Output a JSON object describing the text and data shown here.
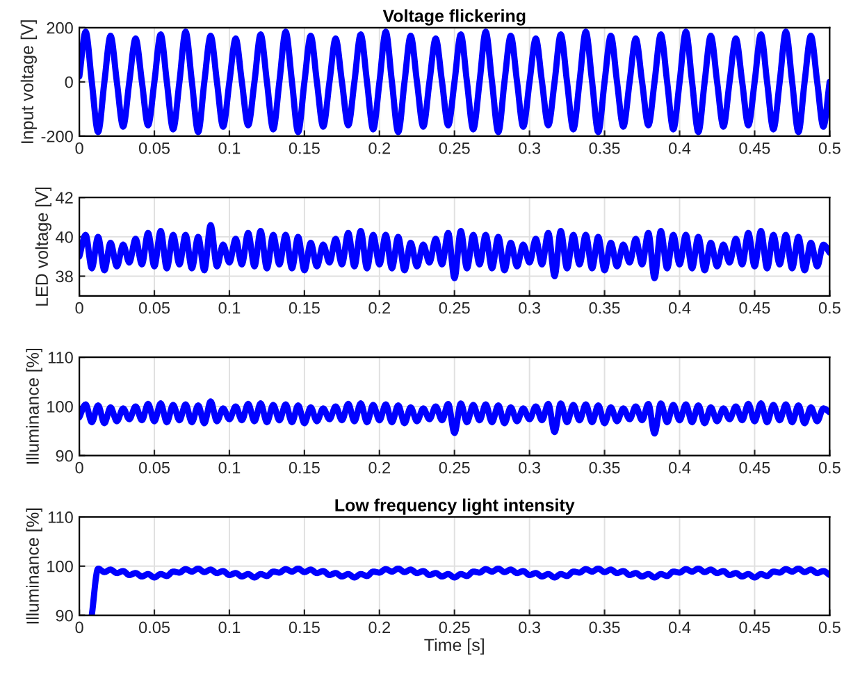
{
  "chart_data": [
    {
      "type": "line",
      "title": "Voltage flickering",
      "ylabel": "Input voltage [V]",
      "xlim": [
        0,
        0.5
      ],
      "xticks": [
        0,
        0.05,
        0.1,
        0.15,
        0.2,
        0.25,
        0.3,
        0.35,
        0.4,
        0.45,
        0.5
      ],
      "ylim": [
        -200,
        200
      ],
      "yticks": [
        -200,
        0,
        200
      ],
      "grid": true,
      "x": [
        0,
        0.0042,
        0.0083,
        0.0125,
        0.0167,
        0.0208,
        0.025,
        0.0292,
        0.0333,
        0.0375,
        0.0417,
        0.0458,
        0.05,
        0.0542,
        0.0583,
        0.0625,
        0.0667,
        0.0708,
        0.075,
        0.0792,
        0.0833,
        0.0875,
        0.0917,
        0.0958,
        0.1,
        0.1042,
        0.1083,
        0.1125,
        0.1167,
        0.1208,
        0.125,
        0.1292,
        0.1333,
        0.1375,
        0.1417,
        0.1458,
        0.15,
        0.1542,
        0.1583,
        0.1625,
        0.1667,
        0.1708,
        0.175,
        0.1792,
        0.1833,
        0.1875,
        0.1917,
        0.1958,
        0.2,
        0.2042,
        0.2083,
        0.2125,
        0.2167,
        0.2208,
        0.225,
        0.2292,
        0.2333,
        0.2375,
        0.2417,
        0.2458,
        0.25,
        0.2542,
        0.2583,
        0.2625,
        0.2667,
        0.2708,
        0.275,
        0.2792,
        0.2833,
        0.2875,
        0.2917,
        0.2958,
        0.3,
        0.3042,
        0.3083,
        0.3125,
        0.3167,
        0.3208,
        0.325,
        0.3292,
        0.3333,
        0.3375,
        0.3417,
        0.3458,
        0.35,
        0.3542,
        0.3583,
        0.3625,
        0.3667,
        0.3708,
        0.375,
        0.3792,
        0.3833,
        0.3875,
        0.3917,
        0.3958,
        0.4,
        0.4042,
        0.4083,
        0.4125,
        0.4167,
        0.4208,
        0.425,
        0.4292,
        0.4333,
        0.4375,
        0.4417,
        0.4458,
        0.45,
        0.4542,
        0.4583,
        0.4625,
        0.4667,
        0.4708,
        0.475,
        0.4792,
        0.4833,
        0.4875,
        0.4917,
        0.4958,
        0.5
      ],
      "series": [
        {
          "color": "#0000ff",
          "values": [
            20,
            185,
            0,
            -185,
            0,
            170,
            0,
            -165,
            0,
            160,
            0,
            -160,
            0,
            175,
            0,
            -175,
            0,
            185,
            0,
            -185,
            0,
            170,
            0,
            -165,
            0,
            160,
            0,
            -160,
            0,
            175,
            0,
            -175,
            0,
            185,
            0,
            -185,
            0,
            170,
            0,
            -165,
            0,
            160,
            0,
            -160,
            0,
            175,
            0,
            -175,
            0,
            185,
            0,
            -185,
            0,
            170,
            0,
            -165,
            0,
            160,
            0,
            -160,
            0,
            175,
            0,
            -175,
            0,
            185,
            0,
            -185,
            0,
            170,
            0,
            -165,
            0,
            160,
            0,
            -160,
            0,
            175,
            0,
            -175,
            0,
            185,
            0,
            -185,
            0,
            170,
            0,
            -165,
            0,
            160,
            0,
            -160,
            0,
            175,
            0,
            -175,
            0,
            185,
            0,
            -185,
            0,
            170,
            0,
            -165,
            0,
            160,
            0,
            -160,
            0,
            175,
            0,
            -175,
            0,
            185,
            0,
            -185,
            0,
            170,
            0,
            -165,
            0
          ]
        }
      ]
    },
    {
      "type": "line",
      "ylabel": "LED voltage [V]",
      "xlim": [
        0,
        0.5
      ],
      "xticks": [
        0,
        0.05,
        0.1,
        0.15,
        0.2,
        0.25,
        0.3,
        0.35,
        0.4,
        0.45,
        0.5
      ],
      "ylim": [
        37,
        42
      ],
      "yticks": [
        38,
        40,
        42
      ],
      "grid": true,
      "x": [
        0,
        0.0042,
        0.0083,
        0.0125,
        0.0167,
        0.0208,
        0.025,
        0.0292,
        0.0333,
        0.0375,
        0.0417,
        0.0458,
        0.05,
        0.0542,
        0.0583,
        0.0625,
        0.0667,
        0.0708,
        0.075,
        0.0792,
        0.0833,
        0.0875,
        0.0917,
        0.0958,
        0.1,
        0.1042,
        0.1083,
        0.1125,
        0.1167,
        0.1208,
        0.125,
        0.1292,
        0.1333,
        0.1375,
        0.1417,
        0.1458,
        0.15,
        0.1542,
        0.1583,
        0.1625,
        0.1667,
        0.1708,
        0.175,
        0.1792,
        0.1833,
        0.1875,
        0.1917,
        0.1958,
        0.2,
        0.2042,
        0.2083,
        0.2125,
        0.2167,
        0.2208,
        0.225,
        0.2292,
        0.2333,
        0.2375,
        0.2417,
        0.2458,
        0.25,
        0.2542,
        0.2583,
        0.2625,
        0.2667,
        0.2708,
        0.275,
        0.2792,
        0.2833,
        0.2875,
        0.2917,
        0.2958,
        0.3,
        0.3042,
        0.3083,
        0.3125,
        0.3167,
        0.3208,
        0.325,
        0.3292,
        0.3333,
        0.3375,
        0.3417,
        0.3458,
        0.35,
        0.3542,
        0.3583,
        0.3625,
        0.3667,
        0.3708,
        0.375,
        0.3792,
        0.3833,
        0.3875,
        0.3917,
        0.3958,
        0.4,
        0.4042,
        0.4083,
        0.4125,
        0.4167,
        0.4208,
        0.425,
        0.4292,
        0.4333,
        0.4375,
        0.4417,
        0.4458,
        0.45,
        0.4542,
        0.4583,
        0.4625,
        0.4667,
        0.4708,
        0.475,
        0.4792,
        0.4833,
        0.4875,
        0.4917,
        0.4958,
        0.5
      ],
      "series": [
        {
          "color": "#0000ff",
          "values": [
            39.0,
            40.1,
            38.4,
            40.0,
            38.3,
            39.7,
            38.5,
            39.6,
            38.7,
            39.9,
            38.6,
            40.2,
            38.5,
            40.3,
            38.4,
            40.1,
            38.6,
            40.1,
            38.4,
            40.0,
            38.3,
            40.6,
            38.5,
            39.6,
            38.7,
            39.9,
            38.6,
            40.2,
            38.5,
            40.3,
            38.4,
            40.1,
            38.6,
            40.1,
            38.4,
            40.0,
            38.3,
            39.7,
            38.5,
            39.6,
            38.7,
            39.9,
            38.6,
            40.2,
            38.5,
            40.3,
            38.4,
            40.1,
            38.6,
            40.1,
            38.4,
            40.0,
            38.3,
            39.7,
            38.5,
            39.6,
            38.7,
            39.9,
            38.6,
            40.2,
            37.9,
            40.3,
            38.4,
            40.1,
            38.6,
            40.1,
            38.4,
            40.0,
            38.3,
            39.7,
            38.5,
            39.6,
            38.7,
            39.9,
            38.6,
            40.2,
            38.0,
            40.3,
            38.4,
            40.1,
            38.6,
            40.1,
            38.4,
            40.0,
            38.3,
            39.7,
            38.5,
            39.6,
            38.7,
            39.9,
            38.6,
            40.2,
            37.9,
            40.3,
            38.4,
            40.1,
            38.6,
            40.1,
            38.4,
            40.0,
            38.3,
            39.7,
            38.5,
            39.6,
            38.7,
            39.9,
            38.6,
            40.2,
            38.5,
            40.3,
            38.4,
            40.1,
            38.6,
            40.1,
            38.4,
            40.0,
            38.3,
            39.7,
            38.5,
            39.6,
            39.2
          ]
        }
      ]
    },
    {
      "type": "line",
      "ylabel": "Illuminance [%]",
      "xlim": [
        0,
        0.5
      ],
      "xticks": [
        0,
        0.05,
        0.1,
        0.15,
        0.2,
        0.25,
        0.3,
        0.35,
        0.4,
        0.45,
        0.5
      ],
      "ylim": [
        90,
        110
      ],
      "yticks": [
        90,
        100,
        110
      ],
      "grid": true,
      "x": [
        0,
        0.0042,
        0.0083,
        0.0125,
        0.0167,
        0.0208,
        0.025,
        0.0292,
        0.0333,
        0.0375,
        0.0417,
        0.0458,
        0.05,
        0.0542,
        0.0583,
        0.0625,
        0.0667,
        0.0708,
        0.075,
        0.0792,
        0.0833,
        0.0875,
        0.0917,
        0.0958,
        0.1,
        0.1042,
        0.1083,
        0.1125,
        0.1167,
        0.1208,
        0.125,
        0.1292,
        0.1333,
        0.1375,
        0.1417,
        0.1458,
        0.15,
        0.1542,
        0.1583,
        0.1625,
        0.1667,
        0.1708,
        0.175,
        0.1792,
        0.1833,
        0.1875,
        0.1917,
        0.1958,
        0.2,
        0.2042,
        0.2083,
        0.2125,
        0.2167,
        0.2208,
        0.225,
        0.2292,
        0.2333,
        0.2375,
        0.2417,
        0.2458,
        0.25,
        0.2542,
        0.2583,
        0.2625,
        0.2667,
        0.2708,
        0.275,
        0.2792,
        0.2833,
        0.2875,
        0.2917,
        0.2958,
        0.3,
        0.3042,
        0.3083,
        0.3125,
        0.3167,
        0.3208,
        0.325,
        0.3292,
        0.3333,
        0.3375,
        0.3417,
        0.3458,
        0.35,
        0.3542,
        0.3583,
        0.3625,
        0.3667,
        0.3708,
        0.375,
        0.3792,
        0.3833,
        0.3875,
        0.3917,
        0.3958,
        0.4,
        0.4042,
        0.4083,
        0.4125,
        0.4167,
        0.4208,
        0.425,
        0.4292,
        0.4333,
        0.4375,
        0.4417,
        0.4458,
        0.45,
        0.4542,
        0.4583,
        0.4625,
        0.4667,
        0.4708,
        0.475,
        0.4792,
        0.4833,
        0.4875,
        0.4917,
        0.4958,
        0.5
      ],
      "series": [
        {
          "color": "#0000ff",
          "values": [
            97.8,
            100.4,
            96.8,
            100.2,
            96.6,
            99.8,
            97.0,
            99.6,
            97.4,
            100.0,
            97.2,
            100.5,
            97.0,
            100.6,
            96.8,
            100.3,
            97.2,
            100.4,
            96.8,
            100.2,
            96.6,
            101.0,
            97.0,
            99.6,
            97.4,
            100.0,
            97.2,
            100.5,
            97.0,
            100.6,
            96.8,
            100.3,
            97.2,
            100.4,
            96.8,
            100.2,
            96.6,
            99.8,
            97.0,
            99.6,
            97.4,
            100.0,
            97.2,
            100.5,
            97.0,
            100.6,
            96.8,
            100.3,
            97.2,
            100.4,
            96.8,
            100.2,
            96.6,
            99.8,
            97.0,
            99.6,
            97.4,
            100.0,
            97.2,
            100.5,
            94.6,
            100.6,
            96.8,
            100.3,
            97.2,
            100.4,
            96.8,
            100.2,
            96.6,
            99.8,
            97.0,
            99.6,
            97.4,
            100.0,
            97.2,
            100.5,
            94.8,
            100.6,
            96.8,
            100.3,
            97.2,
            100.4,
            96.8,
            100.2,
            96.6,
            99.8,
            97.0,
            99.6,
            97.4,
            100.0,
            97.2,
            100.5,
            94.5,
            100.6,
            96.8,
            100.3,
            97.2,
            100.4,
            96.8,
            100.2,
            96.6,
            99.8,
            97.0,
            99.6,
            97.4,
            100.0,
            97.2,
            100.5,
            97.0,
            100.6,
            96.8,
            100.3,
            97.2,
            100.4,
            96.8,
            100.2,
            96.6,
            99.8,
            97.0,
            99.6,
            98.8
          ]
        }
      ]
    },
    {
      "type": "line",
      "title": "Low frequency light intensity",
      "xlabel": "Time [s]",
      "ylabel": "Illuminance [%]",
      "xlim": [
        0,
        0.5
      ],
      "xticks": [
        0,
        0.05,
        0.1,
        0.15,
        0.2,
        0.25,
        0.3,
        0.35,
        0.4,
        0.45,
        0.5
      ],
      "ylim": [
        90,
        110
      ],
      "yticks": [
        90,
        100,
        110
      ],
      "grid": true,
      "x": [
        0.0083,
        0.0125,
        0.0167,
        0.0208,
        0.025,
        0.0292,
        0.0333,
        0.0375,
        0.0417,
        0.0458,
        0.05,
        0.0542,
        0.0583,
        0.0625,
        0.0667,
        0.0708,
        0.075,
        0.0792,
        0.0833,
        0.0875,
        0.0917,
        0.0958,
        0.1,
        0.1042,
        0.1083,
        0.1125,
        0.1167,
        0.1208,
        0.125,
        0.1292,
        0.1333,
        0.1375,
        0.1417,
        0.1458,
        0.15,
        0.1542,
        0.1583,
        0.1625,
        0.1667,
        0.1708,
        0.175,
        0.1792,
        0.1833,
        0.1875,
        0.1917,
        0.1958,
        0.2,
        0.2042,
        0.2083,
        0.2125,
        0.2167,
        0.2208,
        0.225,
        0.2292,
        0.2333,
        0.2375,
        0.2417,
        0.2458,
        0.25,
        0.2542,
        0.2583,
        0.2625,
        0.2667,
        0.2708,
        0.275,
        0.2792,
        0.2833,
        0.2875,
        0.2917,
        0.2958,
        0.3,
        0.3042,
        0.3083,
        0.3125,
        0.3167,
        0.3208,
        0.325,
        0.3292,
        0.3333,
        0.3375,
        0.3417,
        0.3458,
        0.35,
        0.3542,
        0.3583,
        0.3625,
        0.3667,
        0.3708,
        0.375,
        0.3792,
        0.3833,
        0.3875,
        0.3917,
        0.3958,
        0.4,
        0.4042,
        0.4083,
        0.4125,
        0.4167,
        0.4208,
        0.425,
        0.4292,
        0.4333,
        0.4375,
        0.4417,
        0.4458,
        0.45,
        0.4542,
        0.4583,
        0.4625,
        0.4667,
        0.4708,
        0.475,
        0.4792,
        0.4833,
        0.4875,
        0.4917,
        0.4958,
        0.5
      ],
      "series": [
        {
          "color": "#0000ff",
          "values": [
            90,
            99.5,
            98.8,
            99.3,
            98.6,
            99.0,
            98.2,
            98.6,
            97.9,
            98.4,
            97.7,
            98.4,
            98.0,
            98.9,
            98.7,
            99.4,
            98.9,
            99.5,
            98.8,
            99.3,
            98.6,
            99.0,
            98.2,
            98.6,
            97.9,
            98.4,
            97.7,
            98.4,
            98.0,
            98.9,
            98.7,
            99.4,
            98.9,
            99.5,
            98.8,
            99.3,
            98.6,
            99.0,
            98.2,
            98.6,
            97.9,
            98.4,
            97.7,
            98.4,
            98.0,
            98.9,
            98.7,
            99.4,
            98.9,
            99.5,
            98.8,
            99.3,
            98.6,
            99.0,
            98.2,
            98.6,
            97.9,
            98.4,
            97.7,
            98.4,
            98.0,
            98.9,
            98.7,
            99.4,
            98.9,
            99.5,
            98.8,
            99.3,
            98.6,
            99.0,
            98.2,
            98.6,
            97.9,
            98.4,
            97.7,
            98.4,
            98.0,
            98.9,
            98.7,
            99.4,
            98.9,
            99.5,
            98.8,
            99.3,
            98.6,
            99.0,
            98.2,
            98.6,
            97.9,
            98.4,
            97.7,
            98.4,
            98.0,
            98.9,
            98.7,
            99.4,
            98.9,
            99.5,
            98.8,
            99.3,
            98.6,
            99.0,
            98.2,
            98.6,
            97.9,
            98.4,
            97.7,
            98.4,
            98.0,
            98.9,
            98.7,
            99.4,
            98.9,
            99.5,
            98.8,
            99.3,
            98.6,
            99.0,
            98.2
          ]
        }
      ]
    }
  ]
}
